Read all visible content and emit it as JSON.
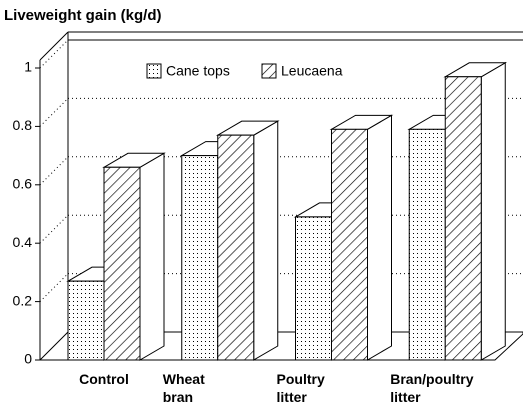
{
  "chart_data": {
    "type": "bar3d",
    "title": "Liveweight gain (kg/d)",
    "categories": [
      "Control",
      "Wheat bran",
      "Poultry litter",
      "Bran/poultry litter"
    ],
    "series": [
      {
        "name": "Cane tops",
        "color": "#000000",
        "values": [
          0.27,
          0.7,
          0.49,
          0.79
        ]
      },
      {
        "name": "Leucaena",
        "color": "#000000",
        "values": [
          0.66,
          0.77,
          0.79,
          0.97
        ]
      }
    ],
    "ylim": [
      0,
      1
    ],
    "yticks": [
      0,
      0.2,
      0.4,
      0.6,
      0.8,
      1
    ],
    "grid": true
  }
}
